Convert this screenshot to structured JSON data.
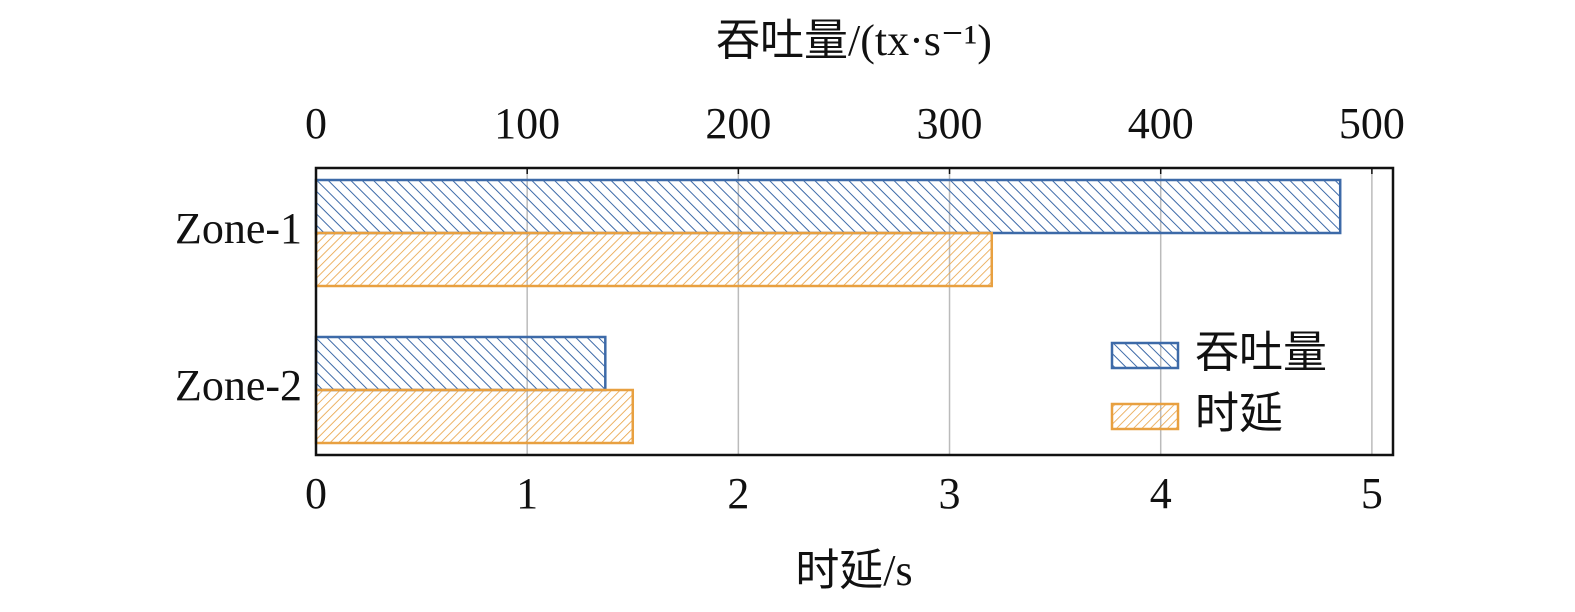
{
  "chart_data": {
    "type": "bar",
    "orientation": "horizontal",
    "categories": [
      "Zone-1",
      "Zone-2"
    ],
    "xlabel": "时延/s",
    "x2label": "吞吐量/(tx·s⁻¹)",
    "xlim": [
      0,
      5.1
    ],
    "xticks": [
      0,
      1,
      2,
      3,
      4,
      5
    ],
    "x2lim": [
      0,
      510
    ],
    "x2ticks": [
      0,
      100,
      200,
      300,
      400,
      500
    ],
    "grid": true,
    "legend": "lower right",
    "series": [
      {
        "name": "吞吐量",
        "color": "#3d6aa8",
        "axis": "x2",
        "values": [
          485,
          137
        ]
      },
      {
        "name": "时延",
        "color": "#e8a040",
        "axis": "x",
        "values": [
          3.2,
          1.5
        ]
      }
    ]
  }
}
